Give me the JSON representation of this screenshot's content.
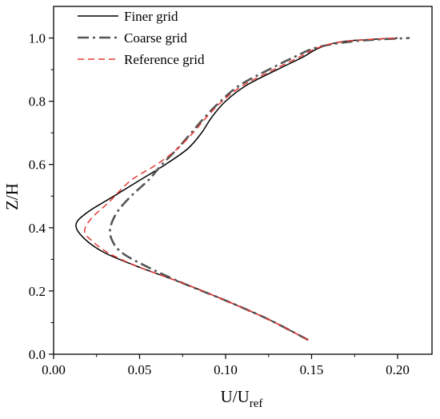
{
  "chart_data": {
    "type": "line",
    "xlabel": "U/U",
    "xlabel_sub": "ref",
    "ylabel": "Z/H",
    "xlim": [
      0.0,
      0.22
    ],
    "ylim": [
      0.0,
      1.1
    ],
    "xticks": [
      "0.00",
      "0.05",
      "0.10",
      "0.15",
      "0.20"
    ],
    "yticks": [
      "0.0",
      "0.2",
      "0.4",
      "0.6",
      "0.8",
      "1.0"
    ],
    "grid": false,
    "legend_position": "top-left",
    "series": [
      {
        "name": "Finer grid",
        "color": "#000000",
        "style": "solid",
        "points": [
          [
            0.148,
            0.045
          ],
          [
            0.125,
            0.11
          ],
          [
            0.1,
            0.17
          ],
          [
            0.075,
            0.225
          ],
          [
            0.05,
            0.275
          ],
          [
            0.03,
            0.32
          ],
          [
            0.018,
            0.365
          ],
          [
            0.013,
            0.41
          ],
          [
            0.02,
            0.45
          ],
          [
            0.035,
            0.5
          ],
          [
            0.05,
            0.55
          ],
          [
            0.065,
            0.6
          ],
          [
            0.078,
            0.65
          ],
          [
            0.086,
            0.7
          ],
          [
            0.092,
            0.75
          ],
          [
            0.1,
            0.8
          ],
          [
            0.112,
            0.85
          ],
          [
            0.13,
            0.9
          ],
          [
            0.145,
            0.94
          ],
          [
            0.155,
            0.97
          ],
          [
            0.17,
            0.99
          ],
          [
            0.2,
            1.0
          ]
        ]
      },
      {
        "name": "Coarse grid",
        "color": "#555555",
        "style": "dashdot",
        "points": [
          [
            0.148,
            0.045
          ],
          [
            0.125,
            0.11
          ],
          [
            0.1,
            0.17
          ],
          [
            0.075,
            0.225
          ],
          [
            0.055,
            0.275
          ],
          [
            0.04,
            0.32
          ],
          [
            0.034,
            0.36
          ],
          [
            0.033,
            0.4
          ],
          [
            0.037,
            0.45
          ],
          [
            0.045,
            0.5
          ],
          [
            0.055,
            0.55
          ],
          [
            0.063,
            0.6
          ],
          [
            0.072,
            0.65
          ],
          [
            0.08,
            0.7
          ],
          [
            0.088,
            0.75
          ],
          [
            0.097,
            0.8
          ],
          [
            0.108,
            0.85
          ],
          [
            0.125,
            0.9
          ],
          [
            0.14,
            0.94
          ],
          [
            0.153,
            0.97
          ],
          [
            0.175,
            0.99
          ],
          [
            0.207,
            1.0
          ]
        ]
      },
      {
        "name": "Reference grid",
        "color": "#e53935",
        "style": "dashed",
        "points": [
          [
            0.148,
            0.045
          ],
          [
            0.125,
            0.11
          ],
          [
            0.1,
            0.17
          ],
          [
            0.075,
            0.225
          ],
          [
            0.05,
            0.275
          ],
          [
            0.032,
            0.32
          ],
          [
            0.022,
            0.36
          ],
          [
            0.018,
            0.39
          ],
          [
            0.022,
            0.43
          ],
          [
            0.032,
            0.48
          ],
          [
            0.045,
            0.55
          ],
          [
            0.06,
            0.6
          ],
          [
            0.072,
            0.65
          ],
          [
            0.081,
            0.7
          ],
          [
            0.089,
            0.75
          ],
          [
            0.098,
            0.8
          ],
          [
            0.11,
            0.85
          ],
          [
            0.128,
            0.9
          ],
          [
            0.143,
            0.94
          ],
          [
            0.154,
            0.97
          ],
          [
            0.17,
            0.99
          ],
          [
            0.2,
            1.0
          ]
        ]
      }
    ]
  }
}
